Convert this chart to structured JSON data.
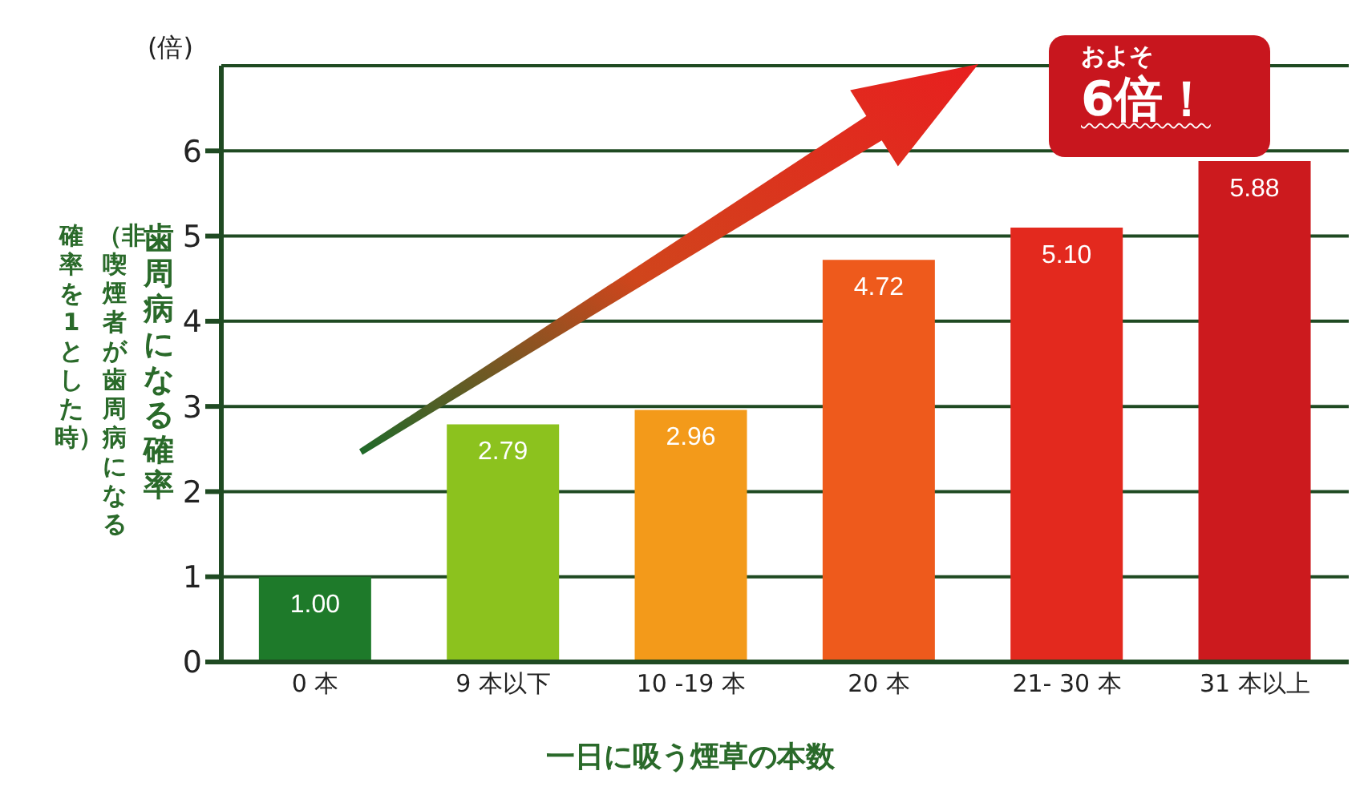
{
  "chart_data": {
    "type": "bar",
    "ylabel": "歯周病になる確率",
    "xlabel": "一日に吸う煙草の本数",
    "categories": [
      "0 本",
      "9 本以下",
      "10 -19 本",
      "20 本",
      "21- 30 本",
      "31 本以上"
    ],
    "values": [
      1.0,
      2.79,
      2.96,
      4.72,
      5.1,
      5.88
    ],
    "value_labels": [
      "1.00",
      "2.79",
      "2.96",
      "4.72",
      "5.10",
      "5.88"
    ],
    "colors": [
      "#1e7a2a",
      "#8cc21e",
      "#f39a1a",
      "#ee5a1c",
      "#e3291e",
      "#cc1a1e"
    ],
    "ylim": [
      0,
      7
    ],
    "yticks": [
      0,
      1,
      2,
      3,
      4,
      5,
      6
    ],
    "grid": "y",
    "annotations": [
      "(倍)",
      "（非喫煙者が歯周病になる確率を1とした時）",
      "およそ",
      "6倍！"
    ]
  }
}
